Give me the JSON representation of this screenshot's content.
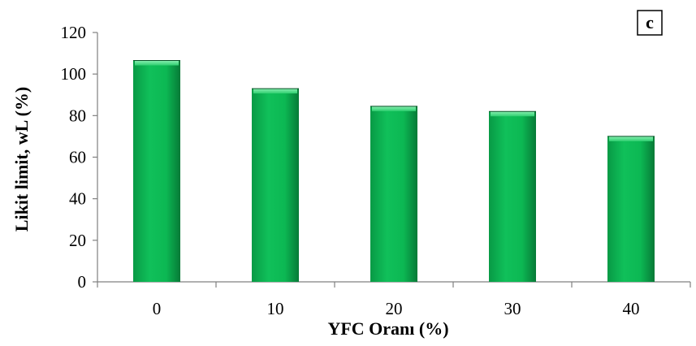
{
  "chart_data": {
    "type": "bar",
    "categories": [
      "0",
      "10",
      "20",
      "30",
      "40"
    ],
    "values": [
      106.5,
      93,
      84.5,
      82,
      70
    ],
    "xlabel": "YFC Oranı (%)",
    "ylabel": "Likit limit, wL (%)",
    "ylim": [
      0,
      120
    ],
    "yticks": [
      "0",
      "20",
      "40",
      "60",
      "80",
      "100",
      "120"
    ],
    "panel_label": "c",
    "grid": false,
    "legend": "none",
    "colors": {
      "bar": "#0dba55",
      "bar_top": "#5de08f",
      "bar_edge": "#077a37",
      "axis": "#808080"
    }
  }
}
